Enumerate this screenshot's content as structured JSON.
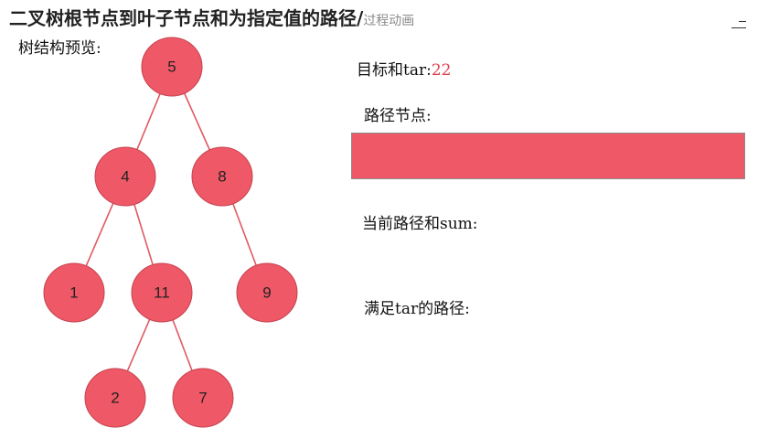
{
  "header": {
    "title": "二叉树根节点到叶子节点和为指定值的路径/",
    "subtitle": "过程动画"
  },
  "tree_panel": {
    "label": "树结构预览:"
  },
  "tree": {
    "nodes": [
      {
        "id": "n5",
        "value": "5"
      },
      {
        "id": "n4",
        "value": "4"
      },
      {
        "id": "n8",
        "value": "8"
      },
      {
        "id": "n1",
        "value": "1"
      },
      {
        "id": "n11",
        "value": "11"
      },
      {
        "id": "n9",
        "value": "9"
      },
      {
        "id": "n2",
        "value": "2"
      },
      {
        "id": "n7",
        "value": "7"
      }
    ],
    "edges": [
      [
        "n5",
        "n4"
      ],
      [
        "n5",
        "n8"
      ],
      [
        "n4",
        "n1"
      ],
      [
        "n4",
        "n11"
      ],
      [
        "n8",
        "n9"
      ],
      [
        "n11",
        "n2"
      ],
      [
        "n11",
        "n7"
      ]
    ]
  },
  "info": {
    "target_label": "目标和tar:",
    "target_value": "22",
    "path_nodes_label": "路径节点:",
    "current_sum_label": "当前路径和sum:",
    "matched_paths_label": "满足tar的路径:"
  },
  "colors": {
    "node_fill": "#ef5866",
    "accent_text": "#e0404f",
    "edge": "#e05a62"
  },
  "icons": {
    "menu": "menu-icon"
  }
}
